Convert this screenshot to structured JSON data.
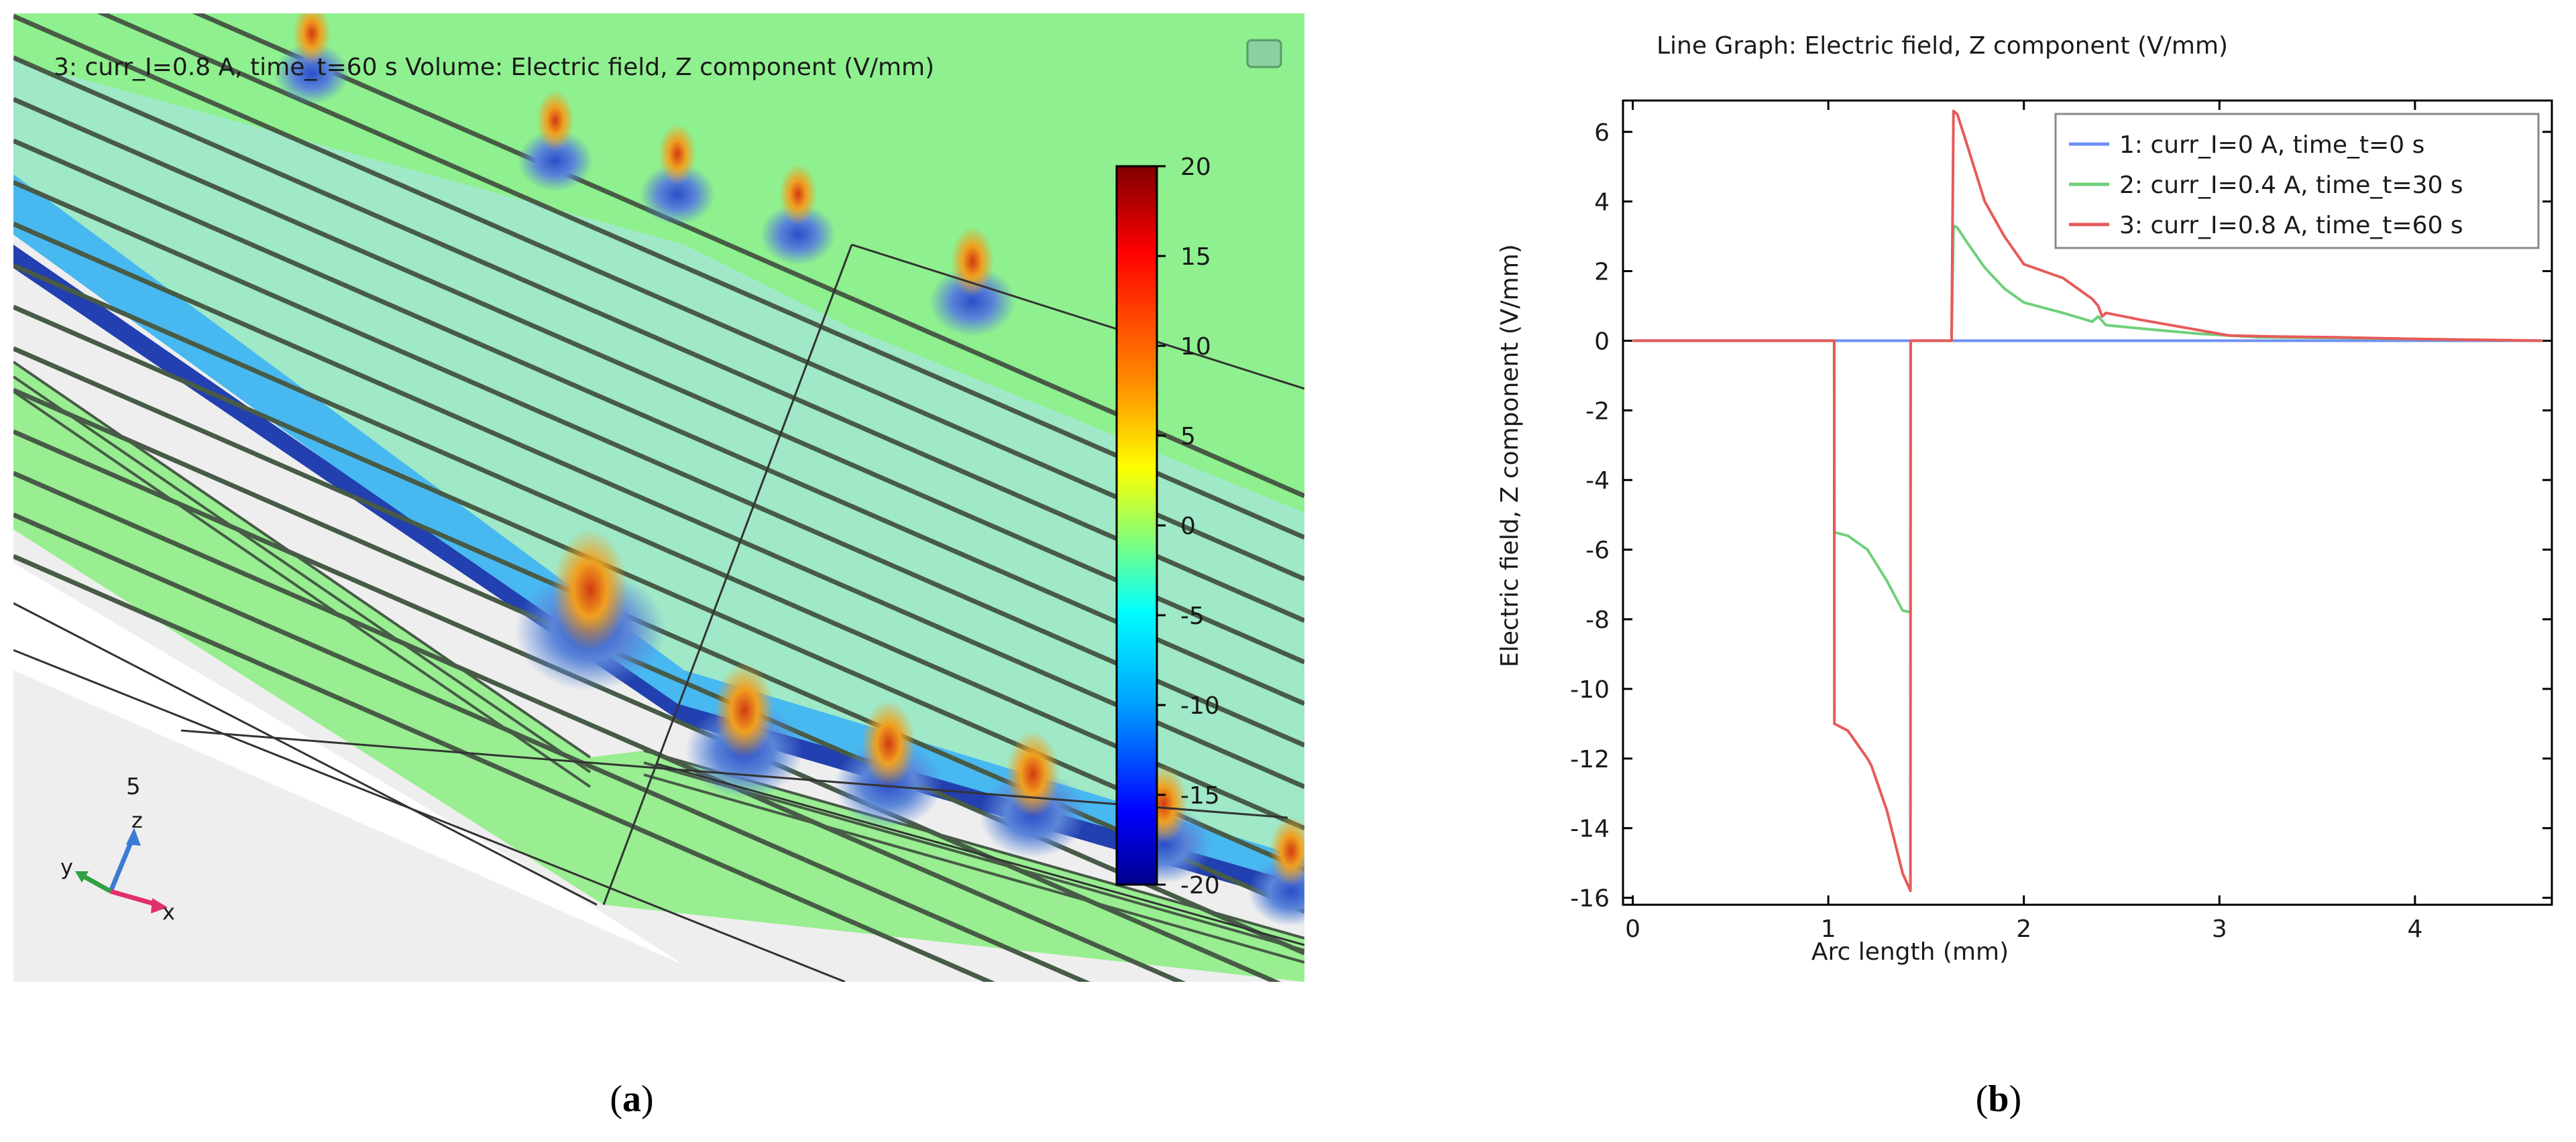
{
  "panel_a": {
    "title": "3: curr_I=0.8 A, time_t=60 s  Volume: Electric field, Z component (V/mm)",
    "colorbar": {
      "ticks": [
        "20",
        "15",
        "10",
        "5",
        "0",
        "-5",
        "-10",
        "-15",
        "-20"
      ],
      "range": [
        -20,
        20
      ]
    },
    "axes_triad": {
      "number": "5",
      "z": "z",
      "y": "y",
      "x": "x"
    },
    "colors": {
      "field_background": "#8ef08e",
      "field_light": "#a6f2a0",
      "stripe": "#475b47"
    }
  },
  "captions": {
    "a": "a",
    "b": "b"
  },
  "chart_data": {
    "type": "line",
    "title": "Line Graph: Electric field, Z component (V/mm)",
    "xlabel": "Arc length (mm)",
    "ylabel": "Electric field, Z component (V/mm)",
    "xlim": [
      -0.05,
      4.7
    ],
    "ylim": [
      -16.2,
      6.9
    ],
    "xticks": [
      "0",
      "1",
      "2",
      "3",
      "4"
    ],
    "yticks": [
      "6",
      "4",
      "2",
      "0",
      "-2",
      "-4",
      "-6",
      "-8",
      "-10",
      "-12",
      "-14",
      "-16"
    ],
    "legend_position": "top-right",
    "series": [
      {
        "name": "1: curr_I=0 A, time_t=0 s",
        "color": "#6e8ff5",
        "x": [
          0,
          4.65
        ],
        "y": [
          0,
          0
        ]
      },
      {
        "name": "2: curr_I=0.4 A, time_t=30 s",
        "color": "#6fd07a",
        "x": [
          0,
          1.03,
          1.031,
          1.1,
          1.2,
          1.3,
          1.38,
          1.42,
          1.421,
          1.43,
          1.63,
          1.64,
          1.66,
          1.7,
          1.8,
          1.9,
          2.0,
          2.2,
          2.35,
          2.38,
          2.42,
          2.6,
          2.9,
          3.2,
          3.6,
          4.0,
          4.65
        ],
        "y": [
          0,
          0,
          -5.5,
          -5.6,
          -6.0,
          -6.9,
          -7.75,
          -7.8,
          0,
          0,
          0,
          3.3,
          3.25,
          2.9,
          2.1,
          1.5,
          1.1,
          0.8,
          0.55,
          0.7,
          0.45,
          0.35,
          0.2,
          0.1,
          0.08,
          0.05,
          0
        ]
      },
      {
        "name": "3: curr_I=0.8 A, time_t=60 s",
        "color": "#e85a5a",
        "x": [
          0,
          1.03,
          1.031,
          1.1,
          1.2,
          1.22,
          1.3,
          1.38,
          1.42,
          1.421,
          1.43,
          1.63,
          1.64,
          1.66,
          1.7,
          1.8,
          1.9,
          2.0,
          2.2,
          2.35,
          2.38,
          2.4,
          2.42,
          2.6,
          2.9,
          3.05,
          3.3,
          3.6,
          4.0,
          4.65
        ],
        "y": [
          0,
          0,
          -11.0,
          -11.2,
          -12.0,
          -12.2,
          -13.5,
          -15.3,
          -15.8,
          0,
          0,
          0,
          6.6,
          6.5,
          5.8,
          4.0,
          3.0,
          2.2,
          1.8,
          1.2,
          1.0,
          0.7,
          0.8,
          0.6,
          0.3,
          0.15,
          0.12,
          0.1,
          0.05,
          0
        ]
      }
    ]
  }
}
